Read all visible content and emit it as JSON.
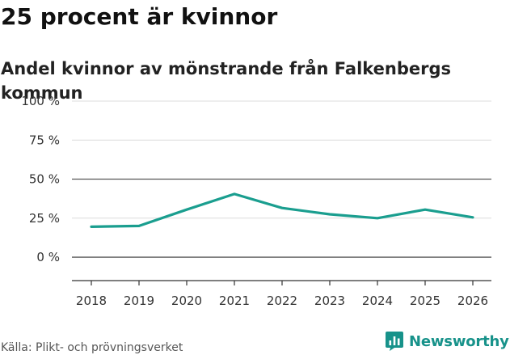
{
  "header": {
    "title": "25 procent är kvinnor",
    "subtitle": "Andel kvinnor av mönstrande från Falkenbergs kommun"
  },
  "footer": {
    "source": "Källa: Plikt- och prövningsverket",
    "brand": "Newsworthy"
  },
  "colors": {
    "line": "#1a9e8f",
    "brand": "#17928a"
  },
  "chart_data": {
    "type": "line",
    "title": "25 procent är kvinnor",
    "subtitle": "Andel kvinnor av mönstrande från Falkenbergs kommun",
    "xlabel": "",
    "ylabel": "",
    "x": [
      "2018",
      "2019",
      "2020",
      "2021",
      "2022",
      "2023",
      "2024",
      "2025",
      "2026"
    ],
    "series": [
      {
        "name": "Andel kvinnor",
        "values": [
          19.5,
          20,
          30.5,
          40.5,
          31.5,
          27.5,
          25,
          30.5,
          25.5
        ]
      }
    ],
    "yticks": [
      0,
      25,
      50,
      75,
      100
    ],
    "ytick_labels": [
      "0 %",
      "25 %",
      "50 %",
      "75 %",
      "100 %"
    ],
    "ylim": [
      -15,
      100
    ],
    "grid": true,
    "legend": "none"
  }
}
